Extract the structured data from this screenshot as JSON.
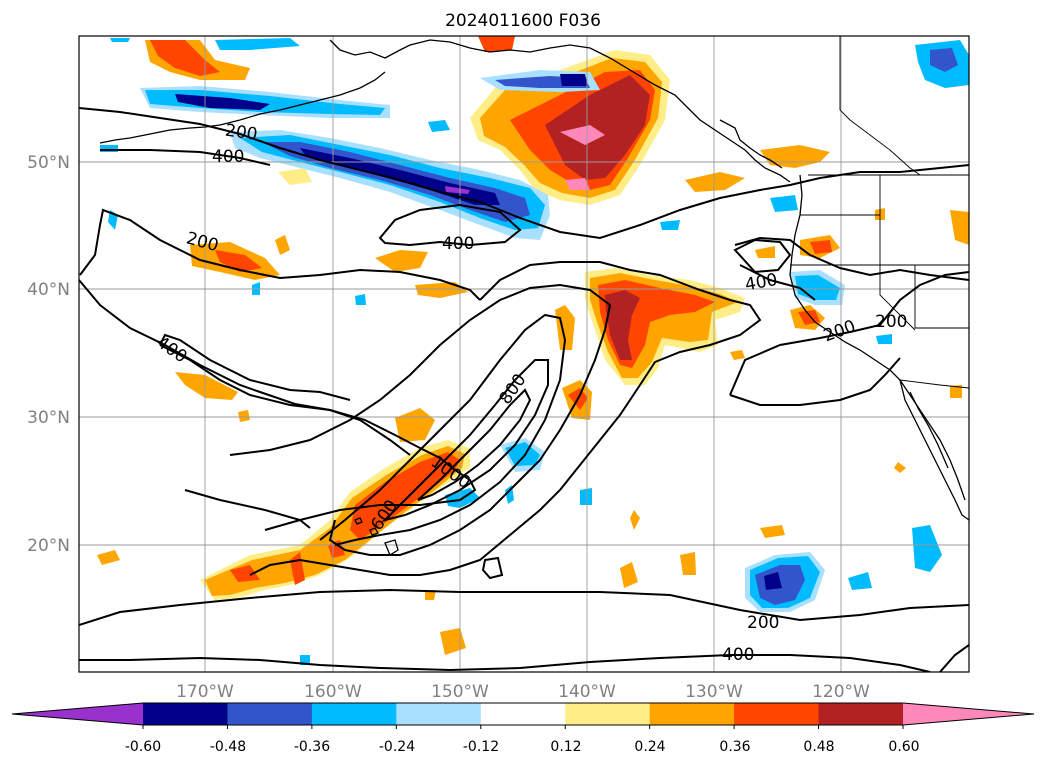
{
  "title": "2024011600 F036",
  "lat_labels": [
    "50°N",
    "40°N",
    "30°N",
    "20°N"
  ],
  "lon_labels": [
    "170°W",
    "160°W",
    "150°W",
    "140°W",
    "130°W",
    "120°W"
  ],
  "contour_labels": [
    "200",
    "400",
    "400",
    "200",
    "400",
    "800",
    "1000",
    "600",
    "400",
    "200",
    "200",
    "200",
    "400"
  ],
  "colorbar": {
    "colors": [
      "#9932cc",
      "#00008b",
      "#3355cc",
      "#00bbff",
      "#aae0ff",
      "#ffffff",
      "#ffee88",
      "#ffa500",
      "#ff4500",
      "#b22222",
      "#ff88bb"
    ],
    "tick_labels": [
      "-0.60",
      "-0.48",
      "-0.36",
      "-0.24",
      "-0.12",
      "0.12",
      "0.24",
      "0.36",
      "0.48",
      "0.60"
    ]
  },
  "colors": {
    "orange": "#ffa500",
    "red_orange": "#ff4500",
    "dark_red": "#b22222",
    "pink": "#ff88bb",
    "light_yellow": "#ffee88",
    "light_blue": "#aae0ff",
    "cyan": "#00bbff",
    "mid_blue": "#3355cc",
    "navy": "#00008b"
  }
}
